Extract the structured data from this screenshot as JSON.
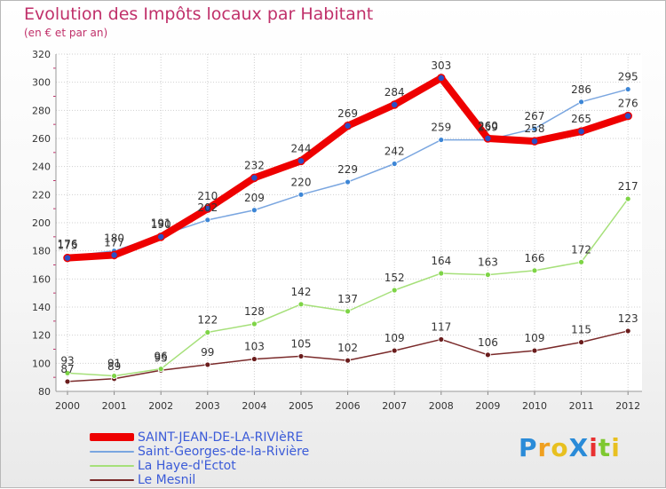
{
  "chart_data": {
    "type": "line",
    "title": "Evolution des Impôts locaux par Habitant",
    "subtitle": "(en € et par an)",
    "x": [
      "2000",
      "2001",
      "2002",
      "2003",
      "2004",
      "2005",
      "2006",
      "2007",
      "2008",
      "2009",
      "2010",
      "2011",
      "2012"
    ],
    "ylim": [
      80,
      320
    ],
    "yticks": [
      80,
      100,
      120,
      140,
      160,
      180,
      200,
      220,
      240,
      260,
      280,
      300,
      320
    ],
    "grid": true,
    "legend_position": "bottom-left",
    "series": [
      {
        "name": "SAINT-JEAN-DE-LA-RIVIèRE",
        "color": "#ee0000",
        "marker": "#2b4fc4",
        "values": [
          175,
          177,
          190,
          210,
          232,
          244,
          269,
          284,
          303,
          260,
          258,
          265,
          276
        ]
      },
      {
        "name": "Saint-Georges-de-la-Rivière",
        "color": "#7aa6e0",
        "marker": "#3d86d6",
        "values": [
          176,
          180,
          191,
          202,
          209,
          220,
          229,
          242,
          259,
          259,
          267,
          286,
          295
        ]
      },
      {
        "name": "La Haye-d'Ectot",
        "color": "#a6e07a",
        "marker": "#7ed446",
        "values": [
          93,
          91,
          96,
          122,
          128,
          142,
          137,
          152,
          164,
          163,
          166,
          172,
          217
        ]
      },
      {
        "name": "Le Mesnil",
        "color": "#7a2a2a",
        "marker": "#6a1c1c",
        "values": [
          87,
          89,
          95,
          99,
          103,
          105,
          102,
          109,
          117,
          106,
          109,
          115,
          123
        ]
      }
    ]
  },
  "logo": {
    "text": "ProXiti",
    "letters": [
      "P",
      "r",
      "o",
      "X",
      "i",
      "t",
      "i"
    ],
    "colors": [
      "#2a8bd8",
      "#f0a020",
      "#e8c020",
      "#2a8bd8",
      "#e83030",
      "#7ec830",
      "#e8c020"
    ]
  }
}
